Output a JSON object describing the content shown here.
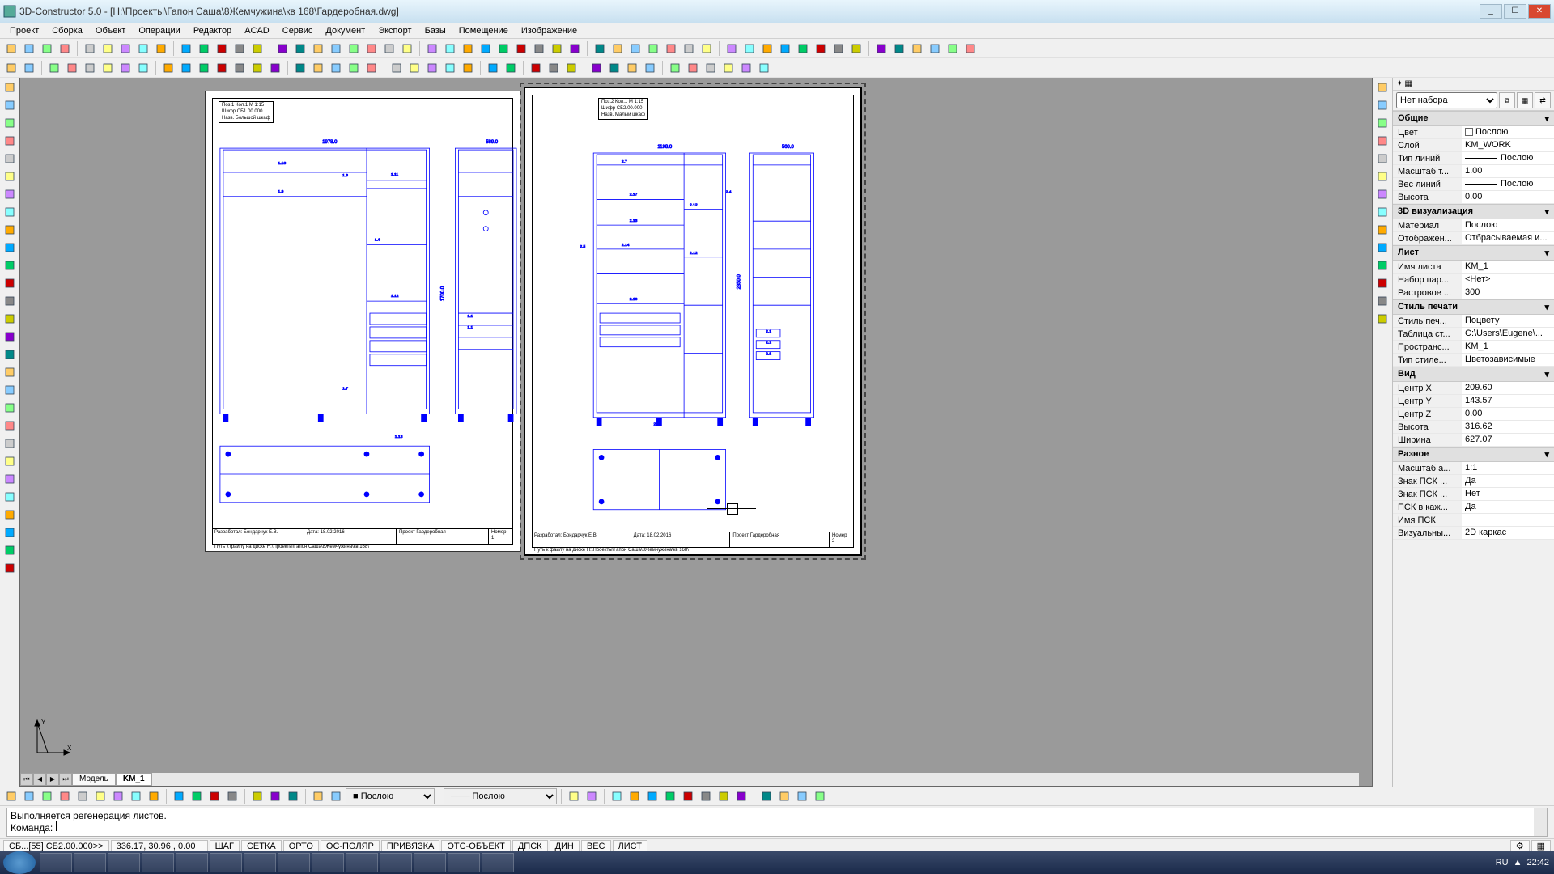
{
  "window": {
    "title": "3D-Constructor 5.0 - [H:\\Проекты\\Гапон Саша\\8Жемчужина\\кв 168\\Гардеробная.dwg]",
    "min": "_",
    "max": "☐",
    "close": "✕"
  },
  "menu": [
    "Проект",
    "Сборка",
    "Объект",
    "Операции",
    "Редактор",
    "ACAD",
    "Сервис",
    "Документ",
    "Экспорт",
    "Базы",
    "Помещение",
    "Изображение"
  ],
  "tabs": {
    "model": "Модель",
    "layout": "KM_1"
  },
  "sheets": {
    "left": {
      "pos": "Поз.1     Кол.1   М 1:15",
      "code": "Шифр СБ1.00.000",
      "name": "Назв. Большой шкаф",
      "width": "1978.0",
      "side_w": "589.0",
      "h": "1700.0",
      "dev": "Разработал: Бондарчук Е.В.",
      "date": "Дата:   18.02.2016",
      "proj": "Проект     Гардеробная",
      "path": "Путь к файлу на диске          H:\\Проекты\\Гапон Саша\\8Жемчужина\\кв 168\\",
      "num": "Номер 1"
    },
    "right": {
      "pos": "Поз.2     Кол.1   М 1:15",
      "code": "Шифр СБ2.00.000",
      "name": "Назв. Малый шкаф",
      "width": "1198.0",
      "side_w": "560.0",
      "h": "2350.0",
      "dev": "Разработал: Бондарчук Е.В.",
      "date": "Дата:   18.02.2016",
      "proj": "Проект     Гардеробная",
      "path": "Путь к файлу на диске          H:\\Проекты\\Гапон Саша\\8Жемчужина\\кв 168\\",
      "num": "Номер 2"
    }
  },
  "props": {
    "selector": "Нет набора",
    "sections": [
      {
        "title": "Общие",
        "rows": [
          {
            "k": "Цвет",
            "v": "Послою",
            "swatch": true
          },
          {
            "k": "Слой",
            "v": "KM_WORK"
          },
          {
            "k": "Тип линий",
            "v": "Послою",
            "line": true
          },
          {
            "k": "Масштаб т...",
            "v": "1.00"
          },
          {
            "k": "Вес линий",
            "v": "Послою",
            "line": true
          },
          {
            "k": "Высота",
            "v": "0.00"
          }
        ]
      },
      {
        "title": "3D визуализация",
        "rows": [
          {
            "k": "Материал",
            "v": "Послою"
          },
          {
            "k": "Отображен...",
            "v": "Отбрасываемая и..."
          }
        ]
      },
      {
        "title": "Лист",
        "rows": [
          {
            "k": "Имя листа",
            "v": "KM_1"
          },
          {
            "k": "Набор пар...",
            "v": "<Нет>"
          },
          {
            "k": "Растровое ...",
            "v": "300"
          }
        ]
      },
      {
        "title": "Стиль печати",
        "rows": [
          {
            "k": "Стиль печ...",
            "v": "Поцвету"
          },
          {
            "k": "Таблица ст...",
            "v": "C:\\Users\\Eugene\\..."
          },
          {
            "k": "Пространс...",
            "v": "KM_1"
          },
          {
            "k": "Тип стиле...",
            "v": "Цветозависимые"
          }
        ]
      },
      {
        "title": "Вид",
        "rows": [
          {
            "k": "Центр X",
            "v": "209.60"
          },
          {
            "k": "Центр Y",
            "v": "143.57"
          },
          {
            "k": "Центр Z",
            "v": "0.00"
          },
          {
            "k": "Высота",
            "v": "316.62"
          },
          {
            "k": "Ширина",
            "v": "627.07"
          }
        ]
      },
      {
        "title": "Разное",
        "rows": [
          {
            "k": "Масштаб а...",
            "v": "1:1"
          },
          {
            "k": "Знак ПСК ...",
            "v": "Да"
          },
          {
            "k": "Знак ПСК ...",
            "v": "Нет"
          },
          {
            "k": "ПСК в каж...",
            "v": "Да"
          },
          {
            "k": "Имя ПСК",
            "v": ""
          },
          {
            "k": "Визуальны...",
            "v": "2D каркас"
          }
        ]
      }
    ]
  },
  "cmd": {
    "history": "Выполняется регенерация листов.",
    "prompt": "Команда:"
  },
  "layer_combo": "Послою",
  "linetype_combo": "Послою",
  "status": {
    "left": "СБ...[55] СБ2.00.000>>",
    "coords": "336.17, 30.96 , 0.00",
    "toggles": [
      "ШАГ",
      "СЕТКА",
      "ОРТО",
      "ОС-ПОЛЯР",
      "ПРИВЯЗКА",
      "ОТС-ОБЪЕКТ",
      "ДПСК",
      "ДИН",
      "ВЕС",
      "ЛИСТ"
    ]
  },
  "taskbar": {
    "lang": "RU",
    "time": "22:42"
  },
  "colors": {
    "drawing": "#0000ff",
    "canvas_bg": "#9a9a9a",
    "ui_bg": "#f0f0f0"
  }
}
